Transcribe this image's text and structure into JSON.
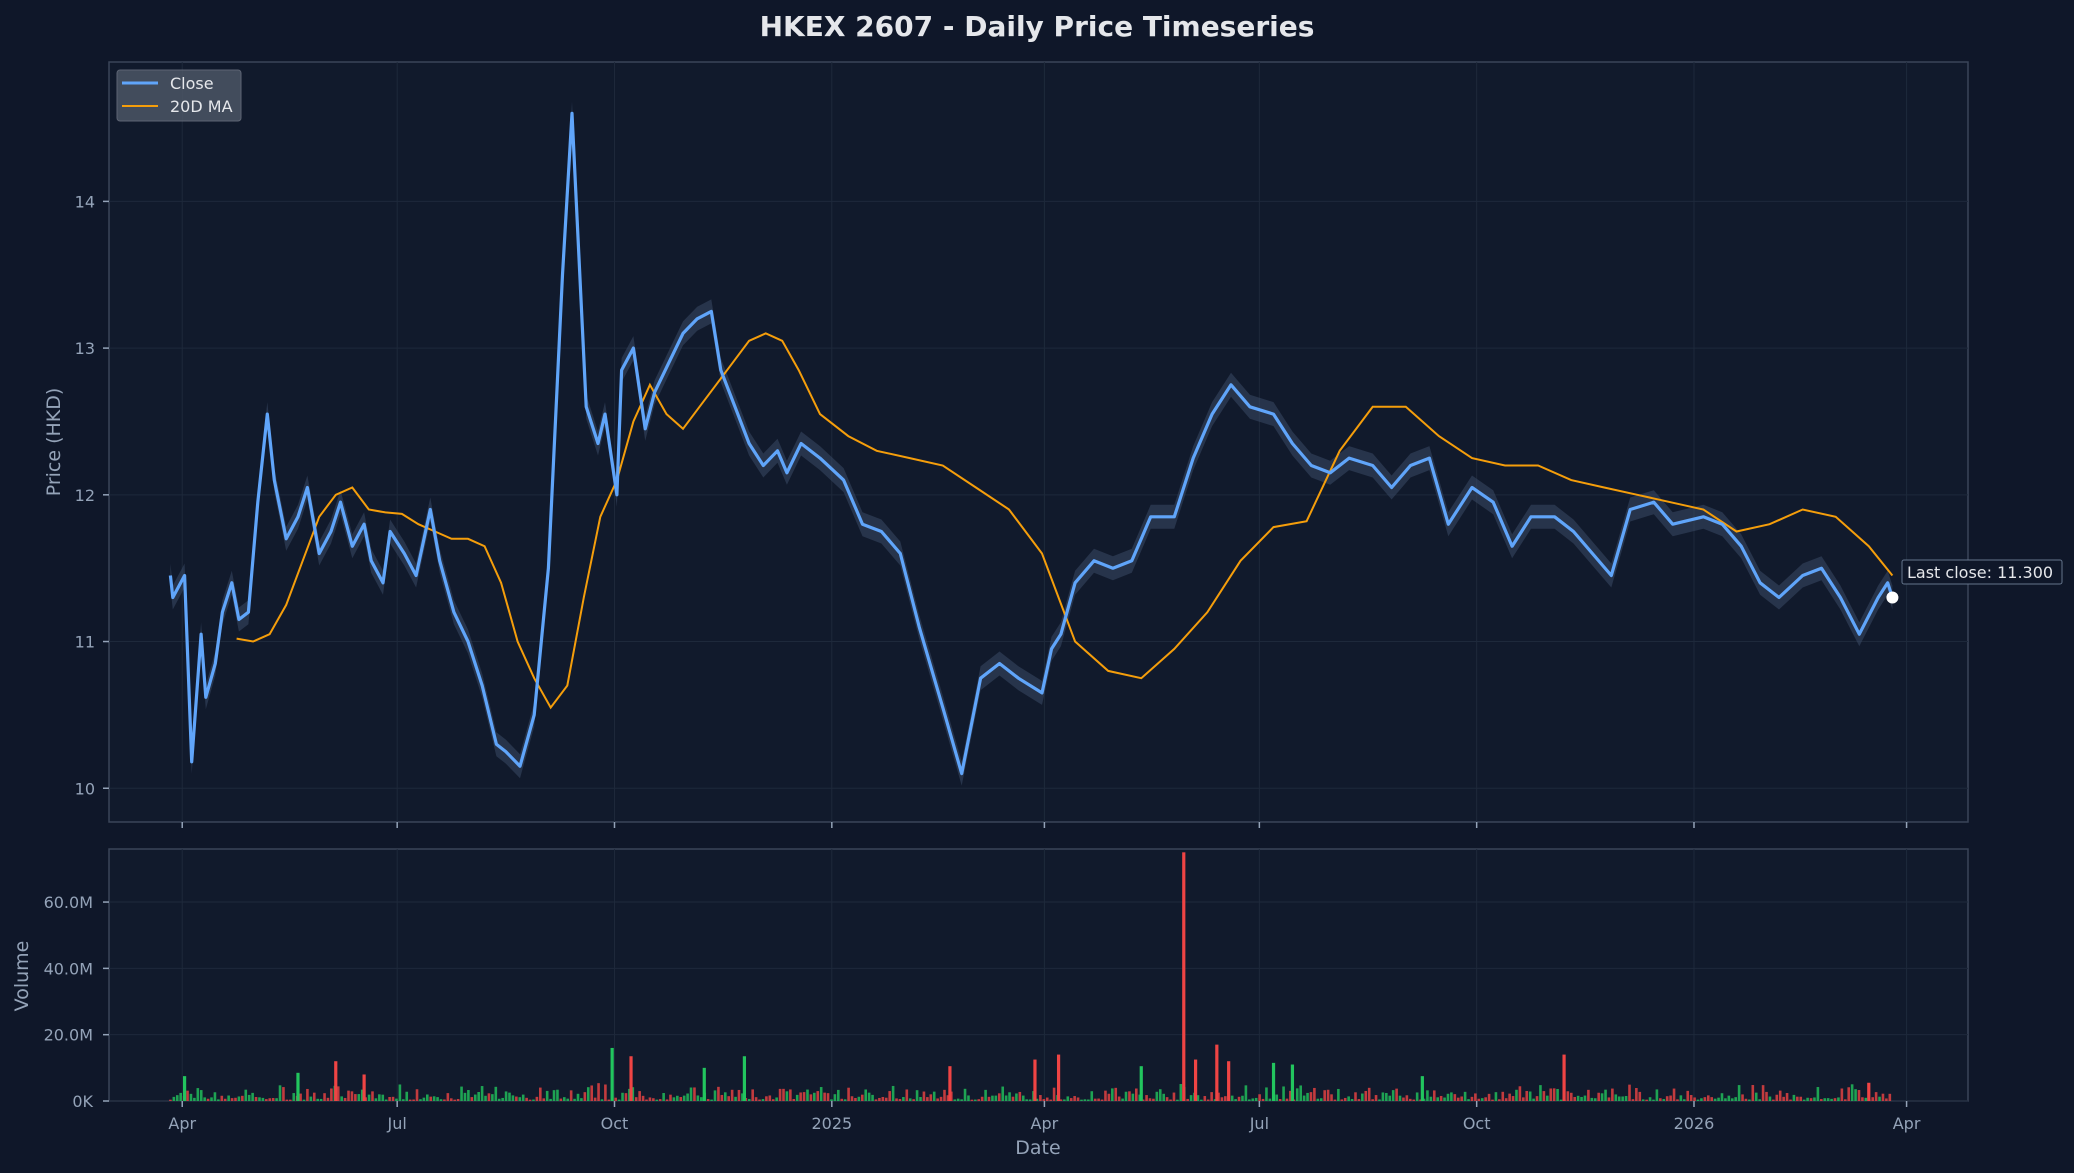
{
  "title": "HKEX 2607 - Daily Price Timeseries",
  "colors": {
    "background": "#0f1729",
    "panel": "#111a2c",
    "close": "#60a5fa",
    "ma": "#f59e0b",
    "band": "#3b4a66",
    "up": "#22c55e",
    "down": "#ef4444",
    "grid": "#1e293b",
    "frame": "#3a4559"
  },
  "chart_data": [
    {
      "type": "line",
      "panel": "price",
      "ylabel": "Price (HKD)",
      "ylim": [
        9.77,
        14.95
      ],
      "yticks": [
        10,
        11,
        12,
        13,
        14
      ],
      "grid": true,
      "legend_position": "top-left",
      "series": [
        {
          "name": "Close",
          "x": [
            "2024-03-27",
            "2024-03-28",
            "2024-04-02",
            "2024-04-05",
            "2024-04-09",
            "2024-04-11",
            "2024-04-15",
            "2024-04-18",
            "2024-04-22",
            "2024-04-25",
            "2024-04-29",
            "2024-05-03",
            "2024-05-07",
            "2024-05-10",
            "2024-05-15",
            "2024-05-20",
            "2024-05-24",
            "2024-05-29",
            "2024-06-03",
            "2024-06-07",
            "2024-06-12",
            "2024-06-17",
            "2024-06-20",
            "2024-06-25",
            "2024-06-28",
            "2024-07-04",
            "2024-07-09",
            "2024-07-15",
            "2024-07-19",
            "2024-07-25",
            "2024-07-31",
            "2024-08-06",
            "2024-08-12",
            "2024-08-16",
            "2024-08-22",
            "2024-08-28",
            "2024-09-03",
            "2024-09-09",
            "2024-09-13",
            "2024-09-19",
            "2024-09-24",
            "2024-09-27",
            "2024-10-02",
            "2024-10-04",
            "2024-10-09",
            "2024-10-14",
            "2024-10-18",
            "2024-10-24",
            "2024-10-30",
            "2024-11-05",
            "2024-11-11",
            "2024-11-15",
            "2024-11-21",
            "2024-11-27",
            "2024-12-03",
            "2024-12-09",
            "2024-12-13",
            "2024-12-19",
            "2024-12-27",
            "2025-01-06",
            "2025-01-14",
            "2025-01-22",
            "2025-01-30",
            "2025-02-07",
            "2025-02-17",
            "2025-02-25",
            "2025-03-05",
            "2025-03-13",
            "2025-03-21",
            "2025-03-31",
            "2025-04-04",
            "2025-04-08",
            "2025-04-14",
            "2025-04-22",
            "2025-04-30",
            "2025-05-08",
            "2025-05-16",
            "2025-05-26",
            "2025-06-03",
            "2025-06-11",
            "2025-06-19",
            "2025-06-27",
            "2025-07-07",
            "2025-07-15",
            "2025-07-23",
            "2025-07-31",
            "2025-08-08",
            "2025-08-18",
            "2025-08-26",
            "2025-09-03",
            "2025-09-11",
            "2025-09-19",
            "2025-09-29",
            "2025-10-08",
            "2025-10-16",
            "2025-10-24",
            "2025-11-03",
            "2025-11-11",
            "2025-11-19",
            "2025-11-27",
            "2025-12-05",
            "2025-12-15",
            "2025-12-23",
            "2026-01-05",
            "2026-01-13",
            "2026-01-21",
            "2026-01-29",
            "2026-02-06",
            "2026-02-16",
            "2026-02-24",
            "2026-03-04",
            "2026-03-12",
            "2026-03-20",
            "2026-03-24",
            "2026-03-26"
          ],
          "values": [
            11.45,
            11.3,
            11.45,
            10.18,
            11.05,
            10.62,
            10.85,
            11.2,
            11.4,
            11.15,
            11.2,
            11.95,
            12.55,
            12.1,
            11.7,
            11.85,
            12.05,
            11.6,
            11.75,
            11.95,
            11.65,
            11.8,
            11.55,
            11.4,
            11.75,
            11.6,
            11.45,
            11.9,
            11.55,
            11.2,
            11.0,
            10.7,
            10.3,
            10.25,
            10.15,
            10.5,
            11.5,
            13.5,
            14.6,
            12.6,
            12.35,
            12.55,
            12.0,
            12.85,
            13.0,
            12.45,
            12.7,
            12.9,
            13.1,
            13.2,
            13.25,
            12.85,
            12.6,
            12.35,
            12.2,
            12.3,
            12.15,
            12.35,
            12.25,
            12.1,
            11.8,
            11.75,
            11.6,
            11.1,
            10.55,
            10.1,
            10.75,
            10.85,
            10.75,
            10.65,
            10.95,
            11.05,
            11.4,
            11.55,
            11.5,
            11.55,
            11.85,
            11.85,
            12.25,
            12.55,
            12.75,
            12.6,
            12.55,
            12.35,
            12.2,
            12.15,
            12.25,
            12.2,
            12.05,
            12.2,
            12.25,
            11.8,
            12.05,
            11.95,
            11.65,
            11.85,
            11.85,
            11.75,
            11.6,
            11.45,
            11.9,
            11.95,
            11.8,
            11.85,
            11.8,
            11.65,
            11.4,
            11.3,
            11.45,
            11.5,
            11.3,
            11.05,
            11.3,
            11.4,
            11.3
          ],
          "style": "thick line"
        },
        {
          "name": "20D MA",
          "x": [
            "2024-04-24",
            "2024-05-01",
            "2024-05-08",
            "2024-05-15",
            "2024-05-22",
            "2024-05-29",
            "2024-06-05",
            "2024-06-12",
            "2024-06-19",
            "2024-06-26",
            "2024-07-03",
            "2024-07-10",
            "2024-07-17",
            "2024-07-24",
            "2024-07-31",
            "2024-08-07",
            "2024-08-14",
            "2024-08-21",
            "2024-08-28",
            "2024-09-04",
            "2024-09-11",
            "2024-09-18",
            "2024-09-25",
            "2024-10-02",
            "2024-10-09",
            "2024-10-16",
            "2024-10-23",
            "2024-10-30",
            "2024-11-06",
            "2024-11-13",
            "2024-11-20",
            "2024-11-27",
            "2024-12-04",
            "2024-12-11",
            "2024-12-18",
            "2024-12-27",
            "2025-01-08",
            "2025-01-20",
            "2025-02-03",
            "2025-02-17",
            "2025-03-03",
            "2025-03-17",
            "2025-03-31",
            "2025-04-14",
            "2025-04-28",
            "2025-05-12",
            "2025-05-26",
            "2025-06-09",
            "2025-06-23",
            "2025-07-07",
            "2025-07-21",
            "2025-08-04",
            "2025-08-18",
            "2025-09-01",
            "2025-09-15",
            "2025-09-29",
            "2025-10-13",
            "2025-10-27",
            "2025-11-10",
            "2025-11-24",
            "2025-12-08",
            "2025-12-22",
            "2026-01-05",
            "2026-01-19",
            "2026-02-02",
            "2026-02-16",
            "2026-03-02",
            "2026-03-16",
            "2026-03-26"
          ],
          "values": [
            11.02,
            11.0,
            11.05,
            11.25,
            11.55,
            11.85,
            12.0,
            12.05,
            11.9,
            11.88,
            11.87,
            11.8,
            11.75,
            11.7,
            11.7,
            11.65,
            11.4,
            11.0,
            10.75,
            10.55,
            10.7,
            11.3,
            11.85,
            12.1,
            12.5,
            12.75,
            12.55,
            12.45,
            12.6,
            12.75,
            12.9,
            13.05,
            13.1,
            13.05,
            12.85,
            12.55,
            12.4,
            12.3,
            12.25,
            12.2,
            12.05,
            11.9,
            11.6,
            11.0,
            10.8,
            10.75,
            10.95,
            11.2,
            11.55,
            11.78,
            11.82,
            12.3,
            12.6,
            12.6,
            12.4,
            12.25,
            12.2,
            12.2,
            12.1,
            12.05,
            12.0,
            11.95,
            11.9,
            11.75,
            11.8,
            11.9,
            11.85,
            11.65,
            11.45
          ],
          "style": "thin line"
        }
      ],
      "annotations": [
        {
          "x": "2026-03-26",
          "y": 11.3,
          "text": "Last close: 11.300"
        }
      ]
    },
    {
      "type": "bar",
      "panel": "volume",
      "xlabel": "Date",
      "ylabel": "Volume",
      "ylim": [
        0,
        76000000
      ],
      "yticks": [
        0,
        20000000,
        40000000,
        60000000
      ],
      "ytick_labels": [
        "0K",
        "20.0M",
        "40.0M",
        "60.0M"
      ],
      "xticks": [
        "2024-04-01",
        "2024-07-01",
        "2024-10-01",
        "2025-01-01",
        "2025-04-01",
        "2025-07-01",
        "2025-10-01",
        "2026-01-01",
        "2026-04-01"
      ],
      "xtick_labels": [
        "Apr",
        "Jul",
        "Oct",
        "2025",
        "Apr",
        "Jul",
        "Oct",
        "2026",
        "Apr"
      ],
      "xlim": [
        "2024-03-01",
        "2026-04-27"
      ],
      "grid": true,
      "bars": [
        {
          "x": "2024-04-02",
          "value": 7500000,
          "dir": "up"
        },
        {
          "x": "2024-05-20",
          "value": 8500000,
          "dir": "up"
        },
        {
          "x": "2024-06-05",
          "value": 12000000,
          "dir": "down"
        },
        {
          "x": "2024-06-17",
          "value": 8000000,
          "dir": "down"
        },
        {
          "x": "2024-09-30",
          "value": 16000000,
          "dir": "up"
        },
        {
          "x": "2024-10-08",
          "value": 13500000,
          "dir": "down"
        },
        {
          "x": "2024-11-08",
          "value": 10000000,
          "dir": "up"
        },
        {
          "x": "2024-11-25",
          "value": 13500000,
          "dir": "up"
        },
        {
          "x": "2025-02-20",
          "value": 10500000,
          "dir": "down"
        },
        {
          "x": "2025-03-28",
          "value": 12500000,
          "dir": "down"
        },
        {
          "x": "2025-04-07",
          "value": 14000000,
          "dir": "down"
        },
        {
          "x": "2025-05-12",
          "value": 10500000,
          "dir": "up"
        },
        {
          "x": "2025-05-30",
          "value": 75000000,
          "dir": "down"
        },
        {
          "x": "2025-06-04",
          "value": 12500000,
          "dir": "down"
        },
        {
          "x": "2025-06-13",
          "value": 17000000,
          "dir": "down"
        },
        {
          "x": "2025-06-18",
          "value": 12000000,
          "dir": "down"
        },
        {
          "x": "2025-07-07",
          "value": 11500000,
          "dir": "up"
        },
        {
          "x": "2025-07-15",
          "value": 11000000,
          "dir": "up"
        },
        {
          "x": "2025-09-08",
          "value": 7500000,
          "dir": "up"
        },
        {
          "x": "2025-11-07",
          "value": 14000000,
          "dir": "down"
        },
        {
          "x": "2026-03-16",
          "value": 5500000,
          "dir": "down"
        }
      ],
      "background_volume_note_free": true
    }
  ],
  "legend": [
    {
      "label": "Close",
      "color": "#60a5fa"
    },
    {
      "label": "20D MA",
      "color": "#f59e0b"
    }
  ]
}
